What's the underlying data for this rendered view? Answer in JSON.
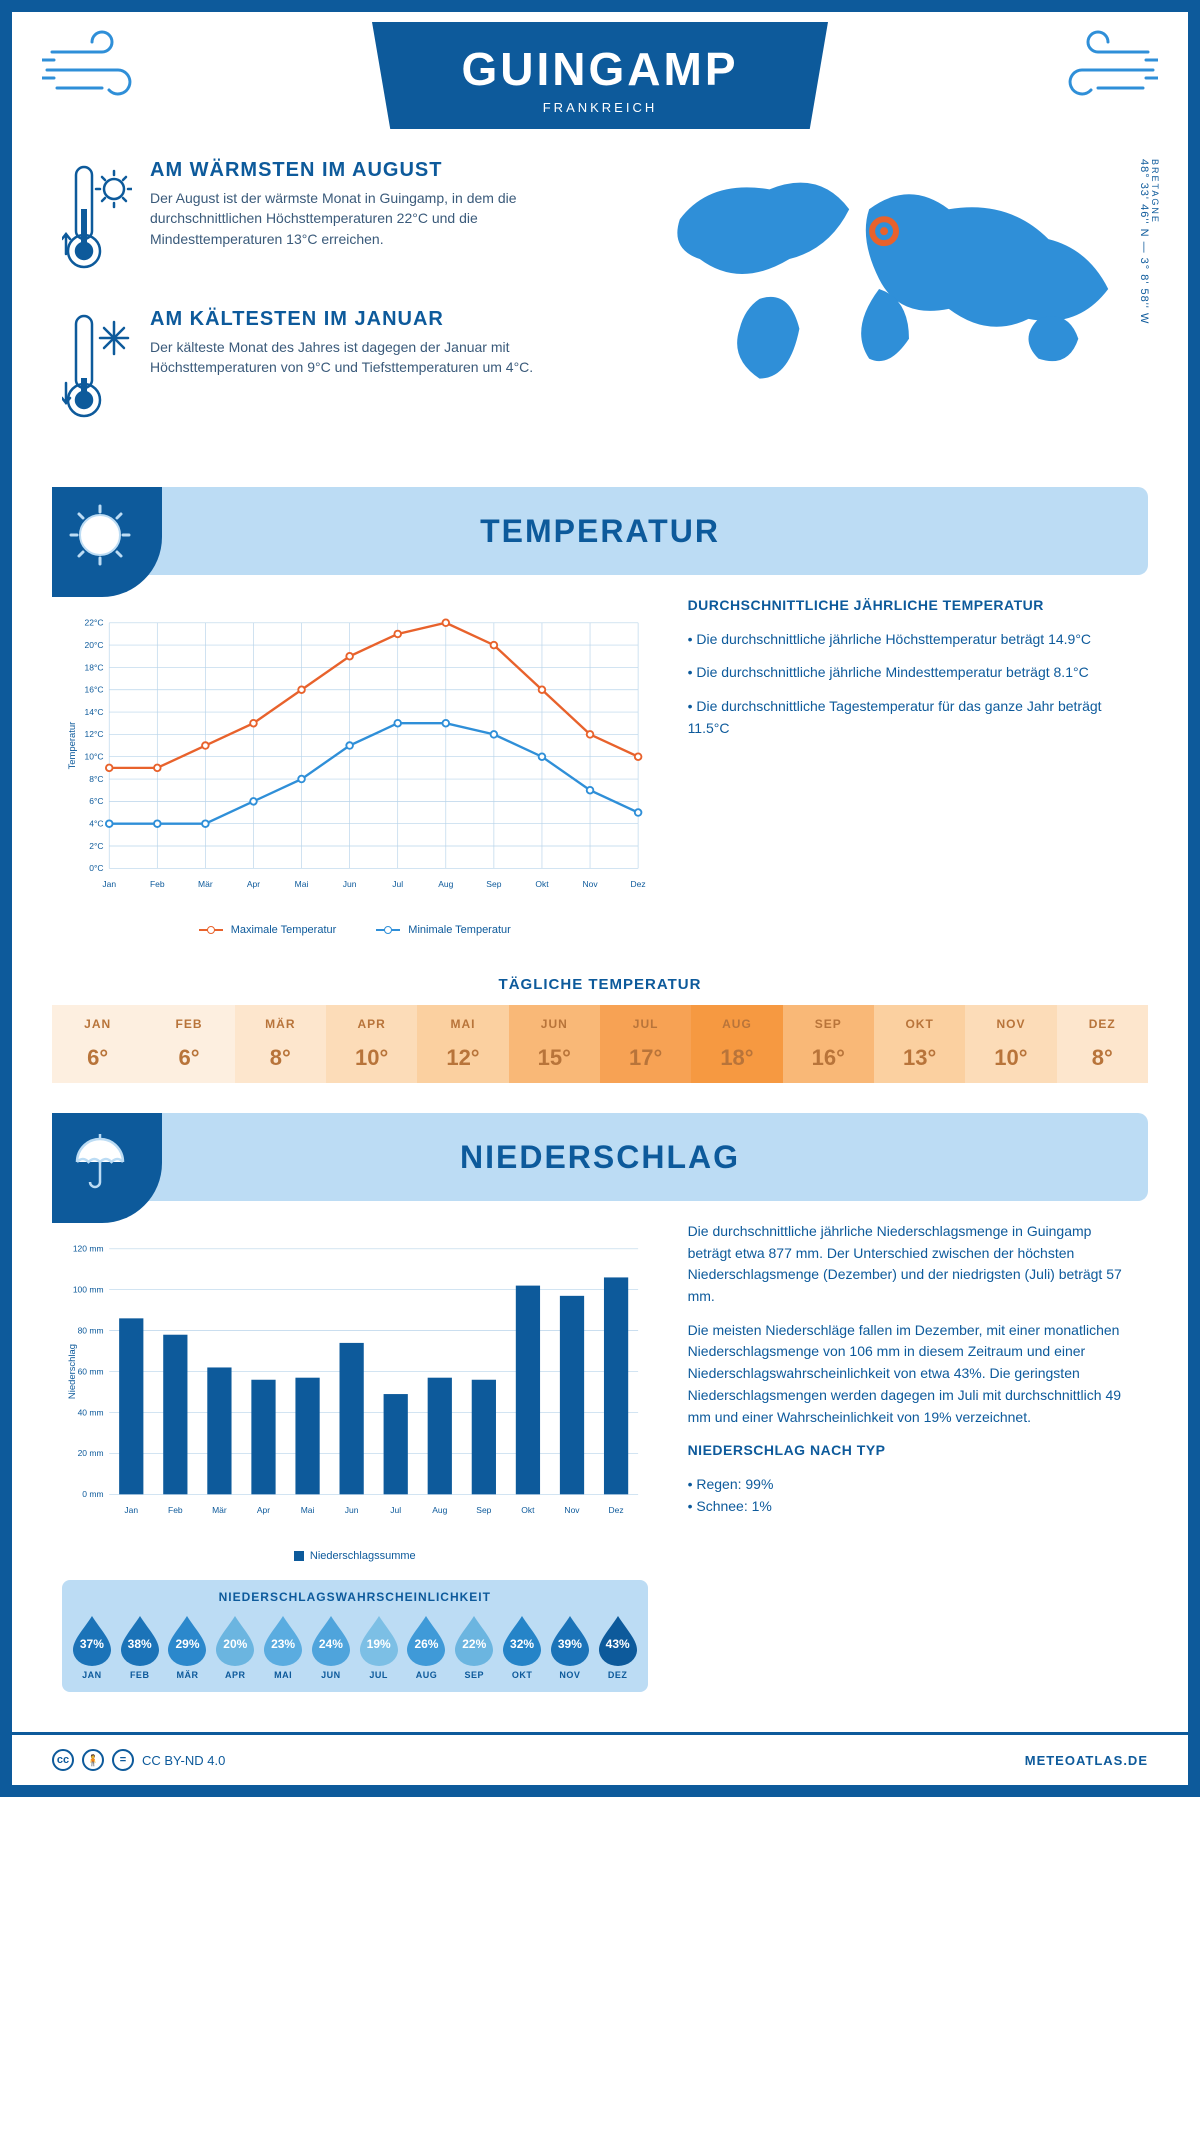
{
  "header": {
    "city": "GUINGAMP",
    "country": "FRANKREICH",
    "region": "BRETAGNE",
    "coords": "48° 33' 46'' N — 3° 8' 58'' W"
  },
  "kpi_warm": {
    "title": "AM WÄRMSTEN IM AUGUST",
    "text": "Der August ist der wärmste Monat in Guingamp, in dem die durchschnittlichen Höchsttemperaturen 22°C und die Mindesttemperaturen 13°C erreichen."
  },
  "kpi_cold": {
    "title": "AM KÄLTESTEN IM JANUAR",
    "text": "Der kälteste Monat des Jahres ist dagegen der Januar mit Höchsttemperaturen von 9°C und Tiefsttemperaturen um 4°C."
  },
  "section_temp": {
    "title": "TEMPERATUR"
  },
  "section_precip": {
    "title": "NIEDERSCHLAG"
  },
  "temp_chart": {
    "type": "line",
    "months": [
      "Jan",
      "Feb",
      "Mär",
      "Apr",
      "Mai",
      "Jun",
      "Jul",
      "Aug",
      "Sep",
      "Okt",
      "Nov",
      "Dez"
    ],
    "max_series": [
      9,
      9,
      11,
      13,
      16,
      19,
      21,
      22,
      20,
      16,
      12,
      10
    ],
    "min_series": [
      4,
      4,
      4,
      6,
      8,
      11,
      13,
      13,
      12,
      10,
      7,
      5
    ],
    "max_color": "#e8622c",
    "min_color": "#2f8fd8",
    "grid_color": "#b8d4ea",
    "axis_color": "#0d5a9b",
    "ylim": [
      0,
      22
    ],
    "ytick_step": 2,
    "ylabel": "Temperatur",
    "legend_max": "Maximale Temperatur",
    "legend_min": "Minimale Temperatur"
  },
  "temp_side": {
    "title": "DURCHSCHNITTLICHE JÄHRLICHE TEMPERATUR",
    "b1": "• Die durchschnittliche jährliche Höchsttemperatur beträgt 14.9°C",
    "b2": "• Die durchschnittliche jährliche Mindesttemperatur beträgt 8.1°C",
    "b3": "• Die durchschnittliche Tagestemperatur für das ganze Jahr beträgt 11.5°C"
  },
  "daily_temp": {
    "title": "TÄGLICHE TEMPERATUR",
    "months": [
      "JAN",
      "FEB",
      "MÄR",
      "APR",
      "MAI",
      "JUN",
      "JUL",
      "AUG",
      "SEP",
      "OKT",
      "NOV",
      "DEZ"
    ],
    "values": [
      "6°",
      "6°",
      "8°",
      "10°",
      "12°",
      "15°",
      "17°",
      "18°",
      "16°",
      "13°",
      "10°",
      "8°"
    ],
    "bg_colors": [
      "#fdefe0",
      "#fdefe0",
      "#fde6cd",
      "#fcdcb8",
      "#fbd0a0",
      "#f9b877",
      "#f7a254",
      "#f69941",
      "#f9b877",
      "#fbd0a0",
      "#fcdcb8",
      "#fde6cd"
    ],
    "text_color": "#b8743a"
  },
  "precip_chart": {
    "type": "bar",
    "months": [
      "Jan",
      "Feb",
      "Mär",
      "Apr",
      "Mai",
      "Jun",
      "Jul",
      "Aug",
      "Sep",
      "Okt",
      "Nov",
      "Dez"
    ],
    "values": [
      86,
      78,
      62,
      56,
      57,
      74,
      49,
      57,
      56,
      102,
      97,
      106
    ],
    "bar_color": "#0d5a9b",
    "grid_color": "#b8d4ea",
    "ylim": [
      0,
      120
    ],
    "ytick_step": 20,
    "ylabel": "Niederschlag",
    "legend": "Niederschlagssumme"
  },
  "precip_text": {
    "p1": "Die durchschnittliche jährliche Niederschlagsmenge in Guingamp beträgt etwa 877 mm. Der Unterschied zwischen der höchsten Niederschlagsmenge (Dezember) und der niedrigsten (Juli) beträgt 57 mm.",
    "p2": "Die meisten Niederschläge fallen im Dezember, mit einer monatlichen Niederschlagsmenge von 106 mm in diesem Zeitraum und einer Niederschlagswahrscheinlichkeit von etwa 43%. Die geringsten Niederschlagsmengen werden dagegen im Juli mit durchschnittlich 49 mm und einer Wahrscheinlichkeit von 19% verzeichnet.",
    "type_title": "NIEDERSCHLAG NACH TYP",
    "type_b1": "• Regen: 99%",
    "type_b2": "• Schnee: 1%"
  },
  "prob": {
    "title": "NIEDERSCHLAGSWAHRSCHEINLICHKEIT",
    "months": [
      "JAN",
      "FEB",
      "MÄR",
      "APR",
      "MAI",
      "JUN",
      "JUL",
      "AUG",
      "SEP",
      "OKT",
      "NOV",
      "DEZ"
    ],
    "pct": [
      "37%",
      "38%",
      "29%",
      "20%",
      "23%",
      "24%",
      "19%",
      "26%",
      "22%",
      "32%",
      "39%",
      "43%"
    ],
    "colors": [
      "#1b73b8",
      "#1b73b8",
      "#2b88cc",
      "#6bb5e0",
      "#5aace0",
      "#4fa4dc",
      "#7cbfe5",
      "#3f9ad8",
      "#6bb5e0",
      "#2584c8",
      "#1b73b8",
      "#0d5a9b"
    ]
  },
  "footer": {
    "license": "CC BY-ND 4.0",
    "site": "METEOATLAS.DE"
  }
}
